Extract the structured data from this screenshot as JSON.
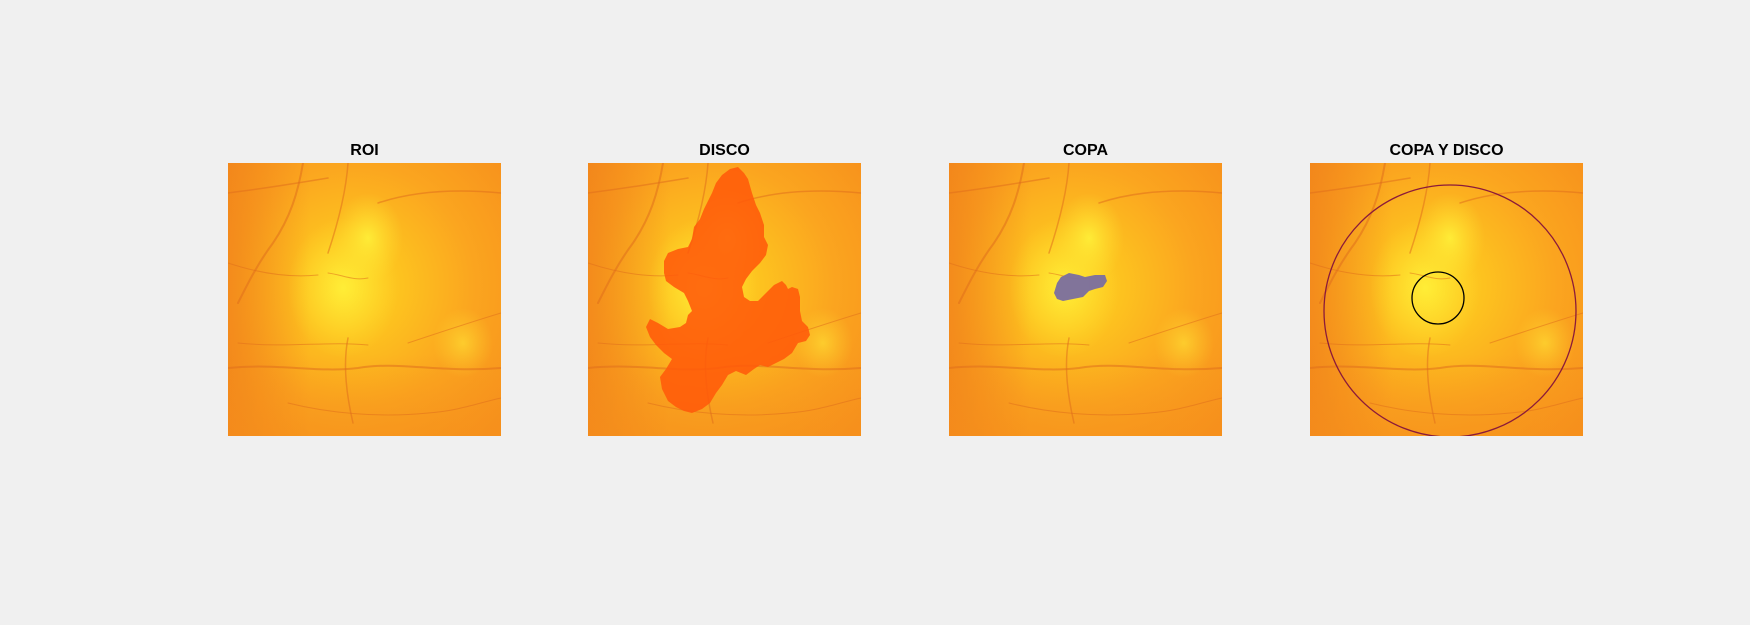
{
  "colors": {
    "figure_background": "#f0f0f0",
    "fundus_base": "#fa9a1e",
    "fundus_bright": "#ffd624",
    "disc_segmentation": "#ff5a0a",
    "cup_segmentation": "#7a6ea0",
    "disc_circle": "#8b1a3a",
    "cup_circle": "#000000"
  },
  "panels": [
    {
      "title": "ROI",
      "content": "fundus-roi-image"
    },
    {
      "title": "DISCO",
      "content": "fundus-with-disc-segmentation"
    },
    {
      "title": "COPA",
      "content": "fundus-with-cup-segmentation"
    },
    {
      "title": "COPA Y DISCO",
      "content": "fundus-with-cup-and-disc-circles"
    }
  ]
}
